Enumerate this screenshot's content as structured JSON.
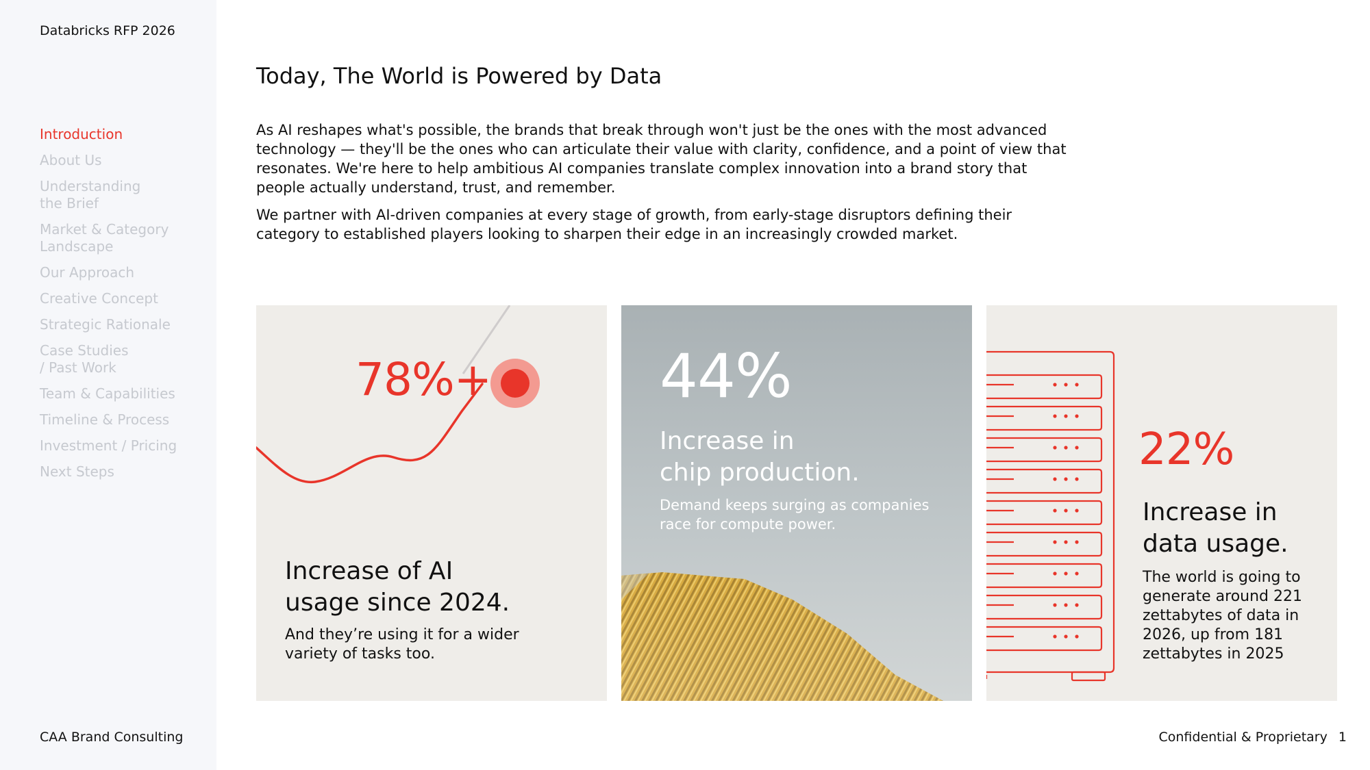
{
  "document": {
    "name": "Databricks RFP 2026",
    "agency": "CAA Brand Consulting"
  },
  "sidebar": {
    "items": [
      {
        "label": "Introduction",
        "active": true
      },
      {
        "label": "About Us"
      },
      {
        "label": "Understanding\nthe Brief"
      },
      {
        "label": "Market & Category\nLandscape"
      },
      {
        "label": "Our Approach"
      },
      {
        "label": "Creative Concept"
      },
      {
        "label": "Strategic Rationale"
      },
      {
        "label": "Case Studies\n/ Past Work"
      },
      {
        "label": "Team & Capabilities"
      },
      {
        "label": "Timeline & Process"
      },
      {
        "label": "Investment / Pricing"
      },
      {
        "label": "Next Steps"
      }
    ]
  },
  "page": {
    "title": "Today, The World is Powered by Data",
    "paragraphs": [
      "As AI reshapes what's possible, the brands that break through won't just be the ones with the most advanced technology — they'll be the ones who can articulate their value with clarity, confidence, and a point of view that resonates. We're here to help ambitious AI companies translate complex innovation into a brand story that people actually understand, trust, and remember.",
      "We partner with AI-driven companies at every stage of growth, from early-stage disruptors defining their category to established players looking to sharpen their edge in an increasingly crowded market."
    ]
  },
  "cards": [
    {
      "stat": "78%+",
      "heading": "Increase of AI\nusage since 2024.",
      "sub": "And they’re using it for a wider variety of tasks too."
    },
    {
      "stat": "44%",
      "heading": "Increase in\nchip production.",
      "sub": "Demand keeps surging as companies race for compute power."
    },
    {
      "stat": "22%",
      "heading": "Increase in\ndata usage.",
      "sub": "The world is going to generate around 221 zettabytes of data in 2026, up from 181 zettabytes in 2025"
    }
  ],
  "footer": {
    "confidential": "Confidential & Proprietary",
    "page_number": "1"
  },
  "colors": {
    "accent": "#e8352a",
    "sidebar_bg": "#f6f7fa",
    "card_bg": "#efede9",
    "nav_inactive": "#c6c9cf"
  }
}
